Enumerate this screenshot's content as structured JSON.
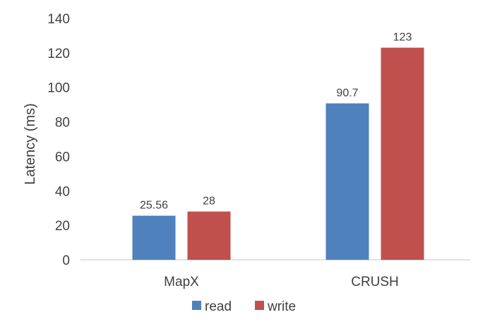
{
  "chart_data": {
    "type": "bar",
    "title": "",
    "xlabel": "",
    "ylabel": "Latency (ms)",
    "ylim": [
      0,
      140
    ],
    "yticks": [
      0,
      20,
      40,
      60,
      80,
      100,
      120,
      140
    ],
    "grid": false,
    "legend_position": "bottom-center",
    "categories": [
      "MapX",
      "CRUSH"
    ],
    "series": [
      {
        "name": "read",
        "color": "#4f81bd",
        "values": [
          25.56,
          90.7
        ]
      },
      {
        "name": "write",
        "color": "#c0504d",
        "values": [
          28,
          123
        ]
      }
    ],
    "data_labels": [
      [
        "25.56",
        "90.7"
      ],
      [
        "28",
        "123"
      ]
    ]
  },
  "colors": {
    "axis": "#d9d9d9",
    "text": "#404040"
  }
}
